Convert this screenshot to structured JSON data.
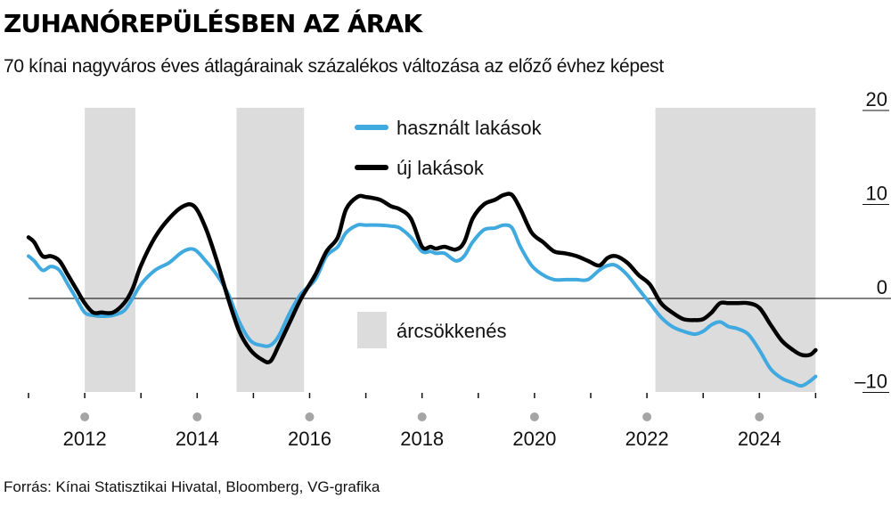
{
  "title": "ZUHANÓREPÜLÉSBEN AZ ÁRAK",
  "subtitle": "70 kínai nagyváros éves átlagárainak százalékos változása az előző évhez képest",
  "source": "Forrás: Kínai Statisztikai Hivatal, Bloomberg, VG-grafika",
  "chart_data": {
    "type": "line",
    "title": "ZUHANÓREPÜLÉSBEN AZ ÁRAK",
    "subtitle": "70 kínai nagyváros éves átlagárainak százalékos változása az előző évhez képest",
    "xlabel": "",
    "ylabel": "",
    "xlim": [
      2011.0,
      2025.2
    ],
    "ylim": [
      -12,
      20
    ],
    "y_ticks": [
      20,
      10,
      0,
      -10
    ],
    "y_tick_labels": [
      "20",
      "10",
      "0",
      "–10"
    ],
    "x_ticks": [
      2012,
      2014,
      2016,
      2018,
      2020,
      2022,
      2024
    ],
    "grid": false,
    "legend_position": "top-center",
    "zero_line": true,
    "shaded_periods": [
      [
        2012.0,
        2012.9
      ],
      [
        2014.7,
        2015.9
      ],
      [
        2022.15,
        2025.0
      ]
    ],
    "shaded_label": "árcsökkenés",
    "shaded_color": "#dcdcdc",
    "series": [
      {
        "name": "használt lakások",
        "color": "#3fa9e0",
        "x": [
          2011.0,
          2011.1,
          2011.25,
          2011.4,
          2011.55,
          2011.7,
          2011.85,
          2012.0,
          2012.15,
          2012.3,
          2012.5,
          2012.7,
          2012.85,
          2013.0,
          2013.25,
          2013.5,
          2013.75,
          2013.95,
          2014.15,
          2014.35,
          2014.55,
          2014.75,
          2014.95,
          2015.15,
          2015.3,
          2015.45,
          2015.65,
          2015.85,
          2016.1,
          2016.3,
          2016.5,
          2016.65,
          2016.85,
          2017.0,
          2017.25,
          2017.45,
          2017.6,
          2017.8,
          2018.0,
          2018.15,
          2018.25,
          2018.4,
          2018.6,
          2018.75,
          2018.9,
          2019.1,
          2019.3,
          2019.45,
          2019.6,
          2019.75,
          2019.95,
          2020.15,
          2020.35,
          2020.55,
          2020.75,
          2020.95,
          2021.15,
          2021.3,
          2021.45,
          2021.65,
          2021.85,
          2022.05,
          2022.25,
          2022.45,
          2022.65,
          2022.85,
          2023.0,
          2023.15,
          2023.3,
          2023.45,
          2023.6,
          2023.8,
          2024.0,
          2024.2,
          2024.4,
          2024.6,
          2024.75,
          2024.9,
          2025.0
        ],
        "y": [
          4.5,
          4.0,
          3.0,
          3.4,
          3.0,
          1.5,
          0.0,
          -1.5,
          -1.8,
          -1.9,
          -1.8,
          -1.3,
          0.0,
          1.5,
          3.0,
          3.8,
          5.0,
          5.2,
          4.0,
          2.5,
          0.5,
          -2.5,
          -4.5,
          -5.0,
          -5.0,
          -4.0,
          -1.5,
          0.5,
          2.0,
          4.5,
          5.5,
          7.0,
          7.8,
          7.8,
          7.8,
          7.7,
          7.5,
          6.5,
          5.0,
          5.0,
          4.8,
          4.8,
          4.0,
          4.5,
          6.0,
          7.3,
          7.5,
          7.8,
          7.5,
          5.5,
          3.5,
          2.5,
          2.0,
          2.0,
          2.0,
          2.0,
          3.0,
          3.5,
          3.5,
          2.5,
          1.0,
          -0.5,
          -2.0,
          -3.0,
          -3.5,
          -3.8,
          -3.5,
          -2.8,
          -2.5,
          -3.0,
          -3.2,
          -3.8,
          -5.5,
          -7.5,
          -8.5,
          -9.0,
          -9.3,
          -8.8,
          -8.3
        ]
      },
      {
        "name": "új lakások",
        "color": "#000000",
        "x": [
          2011.0,
          2011.1,
          2011.25,
          2011.4,
          2011.55,
          2011.7,
          2011.85,
          2012.0,
          2012.15,
          2012.3,
          2012.5,
          2012.7,
          2012.85,
          2013.0,
          2013.25,
          2013.5,
          2013.75,
          2013.95,
          2014.15,
          2014.35,
          2014.55,
          2014.75,
          2014.95,
          2015.15,
          2015.3,
          2015.45,
          2015.65,
          2015.85,
          2016.1,
          2016.3,
          2016.5,
          2016.65,
          2016.85,
          2017.0,
          2017.25,
          2017.45,
          2017.6,
          2017.8,
          2018.0,
          2018.15,
          2018.25,
          2018.4,
          2018.6,
          2018.75,
          2018.9,
          2019.1,
          2019.3,
          2019.45,
          2019.6,
          2019.75,
          2019.95,
          2020.15,
          2020.35,
          2020.55,
          2020.75,
          2020.95,
          2021.15,
          2021.3,
          2021.45,
          2021.65,
          2021.85,
          2022.05,
          2022.25,
          2022.45,
          2022.65,
          2022.85,
          2023.0,
          2023.15,
          2023.3,
          2023.45,
          2023.6,
          2023.8,
          2024.0,
          2024.2,
          2024.4,
          2024.6,
          2024.75,
          2024.9,
          2025.0
        ],
        "y": [
          6.5,
          6.0,
          4.5,
          4.5,
          4.0,
          2.5,
          1.0,
          -0.5,
          -1.5,
          -1.5,
          -1.5,
          -0.5,
          1.0,
          3.5,
          6.5,
          8.5,
          9.8,
          9.8,
          7.5,
          4.0,
          0.0,
          -3.5,
          -5.5,
          -6.5,
          -6.7,
          -5.0,
          -2.5,
          0.0,
          2.5,
          5.0,
          6.5,
          9.5,
          10.8,
          10.8,
          10.5,
          9.8,
          9.5,
          8.5,
          5.5,
          5.5,
          5.3,
          5.5,
          5.2,
          6.0,
          8.5,
          10.0,
          10.5,
          11.0,
          11.0,
          9.5,
          7.0,
          6.0,
          5.0,
          4.8,
          4.5,
          4.0,
          3.5,
          4.3,
          4.5,
          3.8,
          2.5,
          1.5,
          -0.5,
          -1.5,
          -2.2,
          -2.3,
          -2.2,
          -1.5,
          -0.5,
          -0.5,
          -0.5,
          -0.5,
          -1.0,
          -2.8,
          -4.5,
          -5.5,
          -6.0,
          -6.0,
          -5.5
        ]
      }
    ]
  }
}
